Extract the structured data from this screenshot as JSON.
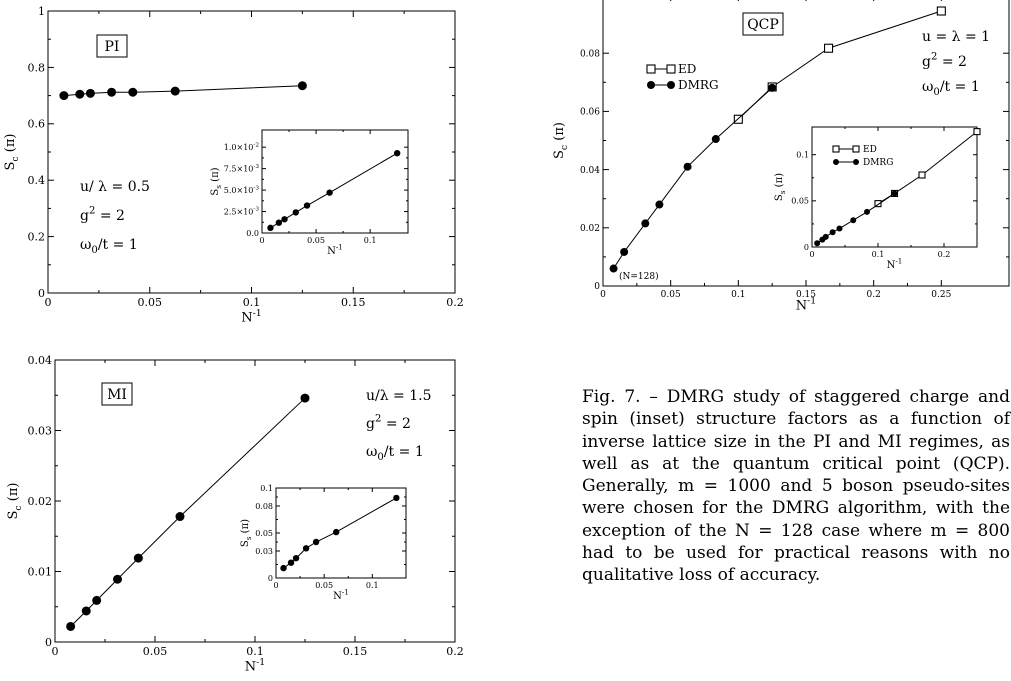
{
  "caption": "Fig. 7. – DMRG study of staggered charge and spin (inset) structure factors as a function of inverse lattice size in the PI and MI regimes, as well as at the quantum critical point (QCP). Generally, m = 1000 and 5 boson pseudo-sites were chosen for the DMRG algorithm, with the exception of the N = 128 case where m = 800 had to be used for practical reasons with no qualitative loss of accuracy.",
  "chart_data": [
    {
      "type": "line",
      "tag": "PI",
      "xlabel": "N-1",
      "ylabel": "Sc(π)",
      "xlim": [
        0,
        0.2
      ],
      "ylim": [
        0,
        1
      ],
      "xticks": [
        0,
        0.05,
        0.1,
        0.15,
        0.2
      ],
      "xtick_labels": [
        "0",
        "0.05",
        "0.1",
        "0.15",
        "0.2"
      ],
      "yticks": [
        0,
        0.2,
        0.4,
        0.6,
        0.8,
        1
      ],
      "ytick_labels": [
        "0",
        "0.2",
        "0.4",
        "0.6",
        "0.8",
        "1"
      ],
      "params": [
        "u/ λ = 0.5",
        "g2 = 2",
        "ω0/t = 1"
      ],
      "series": [
        {
          "marker": "filled-circle",
          "x": [
            0.0078125,
            0.015625,
            0.0208333,
            0.03125,
            0.0416667,
            0.0625,
            0.125
          ],
          "y": [
            0.7,
            0.705,
            0.708,
            0.712,
            0.712,
            0.716,
            0.735
          ]
        }
      ],
      "inset": {
        "ylabel": "Ss(π)",
        "xlabel": "N-1",
        "xlim": [
          0,
          0.135
        ],
        "ylim": [
          0,
          0.012
        ],
        "xticks": [
          0,
          0.05,
          0.1
        ],
        "xtick_labels": [
          "0",
          "0.05",
          "0.1"
        ],
        "yticks": [
          0,
          0.0025,
          0.005,
          0.0075,
          0.01
        ],
        "ytick_labels": [
          "0.0",
          "2.5×10-3",
          "5.0×10-3",
          "7.5×10-3",
          "1.0×10-2"
        ],
        "series": [
          {
            "marker": "filled-circle",
            "x": [
              0.0078125,
              0.015625,
              0.0208333,
              0.03125,
              0.0416667,
              0.0625,
              0.125
            ],
            "y": [
              0.0006,
              0.0012,
              0.0016,
              0.0024,
              0.0032,
              0.0047,
              0.0093
            ]
          }
        ]
      }
    },
    {
      "type": "line",
      "tag": "MI",
      "xlabel": "N-1",
      "ylabel": "Sc(π)",
      "xlim": [
        0,
        0.2
      ],
      "ylim": [
        0,
        0.04
      ],
      "xticks": [
        0,
        0.05,
        0.1,
        0.15,
        0.2
      ],
      "xtick_labels": [
        "0",
        "0.05",
        "0.1",
        "0.15",
        "0.2"
      ],
      "yticks": [
        0,
        0.01,
        0.02,
        0.03,
        0.04
      ],
      "ytick_labels": [
        "0",
        "0.01",
        "0.02",
        "0.03",
        "0.04"
      ],
      "params": [
        "u/λ = 1.5",
        "g2 = 2",
        "ω0/t = 1"
      ],
      "series": [
        {
          "marker": "filled-circle",
          "x": [
            0.0078125,
            0.015625,
            0.0208333,
            0.03125,
            0.0416667,
            0.0625,
            0.125
          ],
          "y": [
            0.0022,
            0.0044,
            0.0059,
            0.0089,
            0.0119,
            0.0178,
            0.0346
          ]
        }
      ],
      "inset": {
        "ylabel": "Ss(π)",
        "xlabel": "N-1",
        "xlim": [
          0,
          0.135
        ],
        "ylim": [
          0,
          0.1
        ],
        "xticks": [
          0,
          0.05,
          0.1
        ],
        "xtick_labels": [
          "0",
          "0.05",
          "0.1"
        ],
        "yticks": [
          0,
          0.03,
          0.05,
          0.08,
          0.1
        ],
        "ytick_labels": [
          "0",
          "0.03",
          "0.05",
          "0.08",
          "0.1"
        ],
        "series": [
          {
            "marker": "filled-circle",
            "x": [
              0.0078125,
              0.015625,
              0.0208333,
              0.03125,
              0.0416667,
              0.0625,
              0.125
            ],
            "y": [
              0.011,
              0.017,
              0.022,
              0.033,
              0.04,
              0.051,
              0.089
            ]
          }
        ]
      }
    },
    {
      "type": "line",
      "tag": "QCP",
      "xlabel": "N-1",
      "ylabel": "Sc(π)",
      "xlim": [
        0,
        0.3
      ],
      "ylim": [
        0,
        0.1
      ],
      "xticks": [
        0,
        0.05,
        0.1,
        0.15,
        0.2,
        0.25
      ],
      "xtick_labels": [
        "0",
        "0.05",
        "0.1",
        "0.15",
        "0.2",
        "0.25"
      ],
      "yticks": [
        0,
        0.02,
        0.04,
        0.06,
        0.08
      ],
      "ytick_labels": [
        "0",
        "0.02",
        "0.04",
        "0.06",
        "0.08"
      ],
      "params": [
        "u = λ = 1",
        "g2 = 2",
        "ω0/t = 1"
      ],
      "legend": [
        "ED",
        "DMRG"
      ],
      "annotation": "(N=128)",
      "series": [
        {
          "name": "ED",
          "marker": "open-square",
          "x": [
            0.1,
            0.125,
            0.1666667,
            0.25
          ],
          "y": [
            0.0573,
            0.0684,
            0.0817,
            0.0945
          ]
        },
        {
          "name": "DMRG",
          "marker": "filled-circle",
          "x": [
            0.0078125,
            0.015625,
            0.03125,
            0.0416667,
            0.0625,
            0.0833333,
            0.125
          ],
          "y": [
            0.006,
            0.0117,
            0.0215,
            0.028,
            0.041,
            0.0505,
            0.0681
          ]
        }
      ],
      "inset": {
        "ylabel": "Ss(π)",
        "xlabel": "N-1",
        "xlim": [
          0,
          0.25
        ],
        "ylim": [
          0,
          0.13
        ],
        "xticks": [
          0,
          0.1,
          0.2
        ],
        "xtick_labels": [
          "0",
          "0.1",
          "0.2"
        ],
        "yticks": [
          0,
          0.05,
          0.1
        ],
        "ytick_labels": [
          "0",
          "0.05",
          "0.1"
        ],
        "legend": [
          "ED",
          "DMRG"
        ],
        "series": [
          {
            "name": "ED",
            "marker": "open-square",
            "x": [
              0.1,
              0.125,
              0.1666667,
              0.25
            ],
            "y": [
              0.047,
              0.058,
              0.078,
              0.125
            ]
          },
          {
            "name": "DMRG",
            "marker": "filled-circle",
            "x": [
              0.0078125,
              0.015625,
              0.0208333,
              0.03125,
              0.0416667,
              0.0625,
              0.0833333,
              0.125
            ],
            "y": [
              0.004,
              0.008,
              0.011,
              0.016,
              0.02,
              0.029,
              0.038,
              0.058
            ]
          }
        ]
      }
    }
  ]
}
